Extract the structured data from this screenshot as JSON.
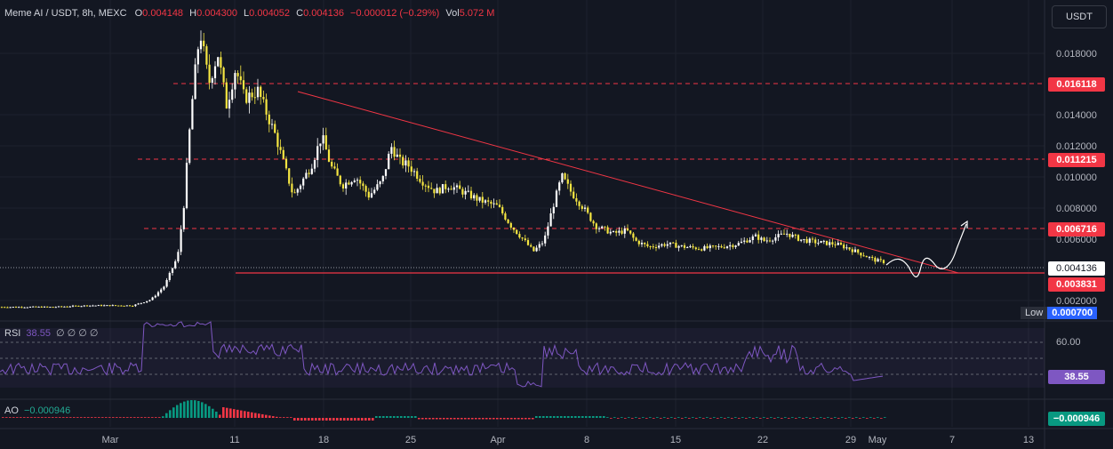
{
  "header": {
    "symbol": "Meme AI / USDT, 8h, MEXC",
    "o_label": "O",
    "o_value": "0.004148",
    "h_label": "H",
    "h_value": "0.004300",
    "l_label": "L",
    "l_value": "0.004052",
    "c_label": "C",
    "c_value": "0.004136",
    "change": "−0.000012 (−0.29%)",
    "vol_label": "Vol",
    "vol_value": "5.072 M"
  },
  "currency_button": "USDT",
  "price_axis": [
    "0.018000",
    "0.014000",
    "0.012000",
    "0.010000",
    "0.008000",
    "0.006000",
    "0.002000"
  ],
  "price_tags": {
    "level1": "0.016118",
    "level2": "0.011215",
    "level3": "0.006716",
    "current": "0.004136",
    "support": "0.003831",
    "low_label": "Low",
    "low_value": "0.000700"
  },
  "rsi": {
    "label": "RSI",
    "value": "38.55",
    "placeholders": "∅ ∅ ∅ ∅",
    "axis": "60.00",
    "tag": "38.55"
  },
  "ao": {
    "label": "AO",
    "value": "−0.000946",
    "tag": "−0.000946"
  },
  "time_axis": [
    "Mar",
    "11",
    "18",
    "25",
    "Apr",
    "8",
    "15",
    "22",
    "29",
    "May",
    "7",
    "13"
  ],
  "colors": {
    "bg": "#131722",
    "candle_up": "#ffffff",
    "candle_down": "#f5e642",
    "level_line": "#f23645",
    "trend_line": "#f23645",
    "rsi_line": "#7e57c2",
    "ao_up": "#089981",
    "ao_down": "#f23645"
  },
  "chart_data": {
    "type": "candlestick",
    "levels": [
      0.016118,
      0.011215,
      0.006716,
      0.003831
    ],
    "last_close": 0.004136,
    "low": 0.0007,
    "ylim": [
      0.0007,
      0.0186
    ],
    "rsi_last": 38.55,
    "ao_last": -0.000946
  }
}
